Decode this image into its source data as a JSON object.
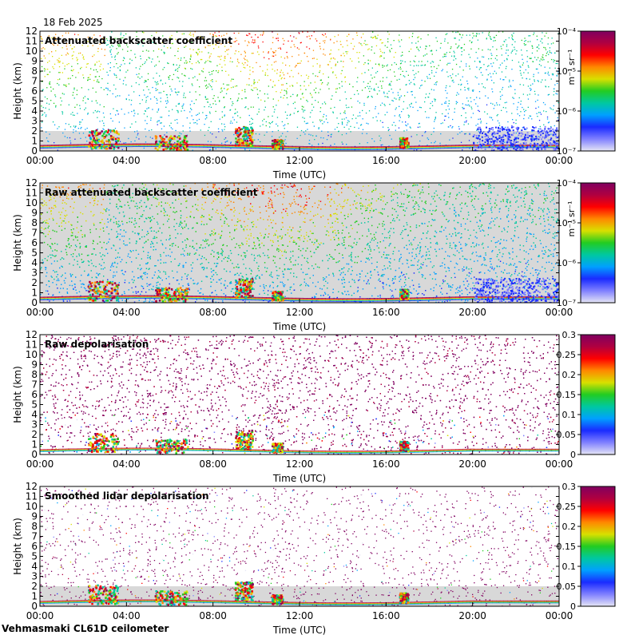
{
  "date_label": "18 Feb 2025",
  "station_label": "Vehmasmaki CL61D ceilometer",
  "colors": {
    "background_gray": "#d8d8d8",
    "colormap": [
      "#e6e6f5",
      "#8080ff",
      "#1a2bff",
      "#00a0ff",
      "#00c8a0",
      "#22cc22",
      "#d8e000",
      "#ff8800",
      "#ff0000",
      "#b00040",
      "#800060"
    ]
  },
  "chart_data": [
    {
      "type": "heatmap",
      "title": "Attenuated backscatter coefficient",
      "xlabel": "Time (UTC)",
      "ylabel": "Height (km)",
      "x_ticks": [
        "00:00",
        "04:00",
        "08:00",
        "12:00",
        "16:00",
        "20:00",
        "00:00"
      ],
      "y_ticks": [
        "0",
        "1",
        "2",
        "3",
        "4",
        "5",
        "6",
        "7",
        "8",
        "9",
        "10",
        "11",
        "12"
      ],
      "ylim": [
        0,
        12
      ],
      "xlim_hours": [
        0,
        24
      ],
      "colorbar": {
        "scale": "log",
        "range": [
          1e-07,
          0.0001
        ],
        "tick_labels": [
          "10⁻⁷",
          "10⁻⁶",
          "10⁻⁵",
          "10⁻⁴"
        ],
        "unit": "m⁻¹ sr⁻¹"
      }
    },
    {
      "type": "heatmap",
      "title": "Raw attenuated backscatter coefficient",
      "xlabel": "Time (UTC)",
      "ylabel": "Height (km)",
      "x_ticks": [
        "00:00",
        "04:00",
        "08:00",
        "12:00",
        "16:00",
        "20:00",
        "00:00"
      ],
      "y_ticks": [
        "0",
        "1",
        "2",
        "3",
        "4",
        "5",
        "6",
        "7",
        "8",
        "9",
        "10",
        "11",
        "12"
      ],
      "ylim": [
        0,
        12
      ],
      "xlim_hours": [
        0,
        24
      ],
      "colorbar": {
        "scale": "log",
        "range": [
          1e-07,
          0.0001
        ],
        "tick_labels": [
          "10⁻⁷",
          "10⁻⁶",
          "10⁻⁵",
          "10⁻⁴"
        ],
        "unit": "m⁻¹ sr⁻¹"
      }
    },
    {
      "type": "heatmap",
      "title": "Raw depolarisation",
      "xlabel": "Time (UTC)",
      "ylabel": "Height (km)",
      "x_ticks": [
        "00:00",
        "04:00",
        "08:00",
        "12:00",
        "16:00",
        "20:00",
        "00:00"
      ],
      "y_ticks": [
        "0",
        "1",
        "2",
        "3",
        "4",
        "5",
        "6",
        "7",
        "8",
        "9",
        "10",
        "11",
        "12"
      ],
      "ylim": [
        0,
        12
      ],
      "xlim_hours": [
        0,
        24
      ],
      "colorbar": {
        "scale": "linear",
        "range": [
          0,
          0.3
        ],
        "tick_labels": [
          "0",
          "0.05",
          "0.1",
          "0.15",
          "0.2",
          "0.25",
          "0.3"
        ],
        "unit": ""
      }
    },
    {
      "type": "heatmap",
      "title": "Smoothed lidar depolarisation",
      "xlabel": "Time (UTC)",
      "ylabel": "Height (km)",
      "x_ticks": [
        "00:00",
        "04:00",
        "08:00",
        "12:00",
        "16:00",
        "20:00",
        "00:00"
      ],
      "y_ticks": [
        "0",
        "1",
        "2",
        "3",
        "4",
        "5",
        "6",
        "7",
        "8",
        "9",
        "10",
        "11",
        "12"
      ],
      "ylim": [
        0,
        12
      ],
      "xlim_hours": [
        0,
        24
      ],
      "colorbar": {
        "scale": "linear",
        "range": [
          0,
          0.3
        ],
        "tick_labels": [
          "0",
          "0.05",
          "0.1",
          "0.15",
          "0.2",
          "0.25",
          "0.3"
        ],
        "unit": ""
      }
    }
  ]
}
